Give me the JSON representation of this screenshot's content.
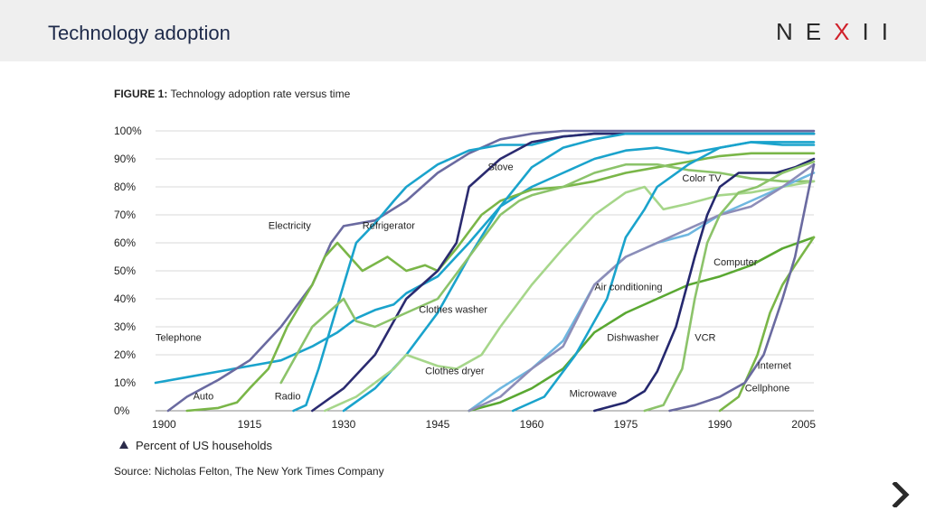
{
  "header": {
    "title": "Technology adoption",
    "brand_main": "NE",
    "brand_x": "X",
    "brand_end": "II"
  },
  "figure": {
    "label": "FIGURE 1:",
    "caption": "Technology adoption rate versus time"
  },
  "legend_note": "Percent of US households",
  "source": "Source: Nicholas Felton, The New York Times Company",
  "colors": {
    "header_bg": "#efefef",
    "accent_red": "#d0202a",
    "navy": "#1e2a4a"
  },
  "chart_data": {
    "type": "line",
    "xlim": [
      1900,
      2005
    ],
    "ylim": [
      0,
      100
    ],
    "xticks": [
      "1900",
      "1915",
      "1930",
      "1945",
      "1960",
      "1975",
      "1990",
      "2005"
    ],
    "yticks": [
      "0%",
      "10%",
      "20%",
      "30%",
      "40%",
      "50%",
      "60%",
      "70%",
      "80%",
      "90%",
      "100%"
    ],
    "grid": true,
    "series": [
      {
        "name": "Telephone",
        "color": "#1aa3cc",
        "label": "Telephone",
        "label_at": [
          1900,
          25
        ],
        "points": [
          [
            1900,
            10
          ],
          [
            1905,
            12
          ],
          [
            1910,
            14
          ],
          [
            1915,
            16
          ],
          [
            1920,
            18
          ],
          [
            1925,
            23
          ],
          [
            1929,
            28
          ],
          [
            1932,
            33
          ],
          [
            1935,
            36
          ],
          [
            1938,
            38
          ],
          [
            1940,
            42
          ],
          [
            1945,
            48
          ],
          [
            1950,
            60
          ],
          [
            1955,
            73
          ],
          [
            1960,
            80
          ],
          [
            1965,
            85
          ],
          [
            1970,
            90
          ],
          [
            1975,
            93
          ],
          [
            1980,
            94
          ],
          [
            1985,
            92
          ],
          [
            1990,
            94
          ],
          [
            1995,
            96
          ],
          [
            2000,
            95
          ],
          [
            2005,
            95
          ]
        ]
      },
      {
        "name": "Electricity",
        "color": "#6a6aa0",
        "label": "Electricity",
        "label_at": [
          1918,
          65
        ],
        "points": [
          [
            1902,
            0
          ],
          [
            1905,
            5
          ],
          [
            1910,
            11
          ],
          [
            1915,
            18
          ],
          [
            1920,
            30
          ],
          [
            1925,
            45
          ],
          [
            1928,
            60
          ],
          [
            1930,
            66
          ],
          [
            1935,
            68
          ],
          [
            1940,
            75
          ],
          [
            1945,
            85
          ],
          [
            1950,
            92
          ],
          [
            1955,
            97
          ],
          [
            1960,
            99
          ],
          [
            1965,
            100
          ],
          [
            2005,
            100
          ]
        ]
      },
      {
        "name": "Auto",
        "color": "#7ab648",
        "label": "Auto",
        "label_at": [
          1906,
          4
        ],
        "points": [
          [
            1905,
            0
          ],
          [
            1910,
            1
          ],
          [
            1913,
            3
          ],
          [
            1915,
            8
          ],
          [
            1918,
            15
          ],
          [
            1921,
            30
          ],
          [
            1925,
            45
          ],
          [
            1927,
            55
          ],
          [
            1929,
            60
          ],
          [
            1931,
            55
          ],
          [
            1933,
            50
          ],
          [
            1937,
            55
          ],
          [
            1940,
            50
          ],
          [
            1943,
            52
          ],
          [
            1945,
            50
          ],
          [
            1948,
            58
          ],
          [
            1952,
            70
          ],
          [
            1955,
            75
          ],
          [
            1960,
            79
          ],
          [
            1965,
            80
          ],
          [
            1970,
            82
          ],
          [
            1975,
            85
          ],
          [
            1980,
            87
          ],
          [
            1985,
            89
          ],
          [
            1990,
            91
          ],
          [
            1995,
            92
          ],
          [
            2000,
            92
          ],
          [
            2005,
            92
          ]
        ]
      },
      {
        "name": "Radio",
        "color": "#1aa3cc",
        "label": "Radio",
        "label_at": [
          1919,
          4
        ],
        "points": [
          [
            1922,
            0
          ],
          [
            1924,
            2
          ],
          [
            1926,
            15
          ],
          [
            1928,
            30
          ],
          [
            1930,
            45
          ],
          [
            1932,
            60
          ],
          [
            1935,
            67
          ],
          [
            1938,
            75
          ],
          [
            1940,
            80
          ],
          [
            1945,
            88
          ],
          [
            1950,
            93
          ],
          [
            1955,
            95
          ],
          [
            1960,
            95
          ],
          [
            1965,
            98
          ],
          [
            1970,
            99
          ],
          [
            2005,
            99
          ]
        ]
      },
      {
        "name": "Refrigerator",
        "color": "#2b2b70",
        "label": "Refrigerator",
        "label_at": [
          1933,
          65
        ],
        "points": [
          [
            1925,
            0
          ],
          [
            1930,
            8
          ],
          [
            1935,
            20
          ],
          [
            1940,
            40
          ],
          [
            1945,
            50
          ],
          [
            1948,
            60
          ],
          [
            1950,
            80
          ],
          [
            1955,
            90
          ],
          [
            1960,
            96
          ],
          [
            1965,
            98
          ],
          [
            1970,
            99
          ],
          [
            2005,
            99
          ]
        ]
      },
      {
        "name": "Stove",
        "color": "#1aa3cc",
        "label": "Stove",
        "label_at": [
          1953,
          86
        ],
        "points": [
          [
            1930,
            0
          ],
          [
            1935,
            8
          ],
          [
            1940,
            20
          ],
          [
            1945,
            35
          ],
          [
            1950,
            55
          ],
          [
            1955,
            73
          ],
          [
            1960,
            87
          ],
          [
            1965,
            94
          ],
          [
            1970,
            97
          ],
          [
            1975,
            99
          ],
          [
            2005,
            99
          ]
        ]
      },
      {
        "name": "Clothes washer",
        "color": "#8cc36a",
        "label": "Clothes washer",
        "label_at": [
          1942,
          35
        ],
        "points": [
          [
            1920,
            10
          ],
          [
            1925,
            30
          ],
          [
            1930,
            40
          ],
          [
            1932,
            32
          ],
          [
            1935,
            30
          ],
          [
            1940,
            35
          ],
          [
            1945,
            40
          ],
          [
            1950,
            55
          ],
          [
            1955,
            70
          ],
          [
            1958,
            75
          ],
          [
            1960,
            77
          ],
          [
            1965,
            80
          ],
          [
            1970,
            85
          ],
          [
            1975,
            88
          ],
          [
            1980,
            88
          ],
          [
            1985,
            86
          ],
          [
            1990,
            85
          ],
          [
            1995,
            83
          ],
          [
            2000,
            82
          ],
          [
            2005,
            82
          ]
        ]
      },
      {
        "name": "Clothes dryer",
        "color": "#a6d68a",
        "label": "Clothes dryer",
        "label_at": [
          1943,
          13
        ],
        "points": [
          [
            1927,
            0
          ],
          [
            1932,
            5
          ],
          [
            1935,
            10
          ],
          [
            1938,
            15
          ],
          [
            1940,
            20
          ],
          [
            1945,
            16
          ],
          [
            1948,
            15
          ],
          [
            1952,
            20
          ],
          [
            1955,
            30
          ],
          [
            1960,
            45
          ],
          [
            1965,
            58
          ],
          [
            1970,
            70
          ],
          [
            1975,
            78
          ],
          [
            1978,
            80
          ],
          [
            1981,
            72
          ],
          [
            1985,
            74
          ],
          [
            1990,
            77
          ],
          [
            1995,
            78
          ],
          [
            2000,
            80
          ],
          [
            2005,
            82
          ]
        ]
      },
      {
        "name": "Air conditioning",
        "color": "#6fb7e0",
        "label": "Air conditioning",
        "label_at": [
          1970,
          43
        ],
        "points": [
          [
            1950,
            0
          ],
          [
            1955,
            8
          ],
          [
            1960,
            15
          ],
          [
            1965,
            25
          ],
          [
            1970,
            45
          ],
          [
            1975,
            55
          ],
          [
            1980,
            60
          ],
          [
            1985,
            63
          ],
          [
            1990,
            70
          ],
          [
            1995,
            75
          ],
          [
            2000,
            80
          ],
          [
            2005,
            85
          ]
        ]
      },
      {
        "name": "Dishwasher",
        "color": "#5aa832",
        "label": "Dishwasher",
        "label_at": [
          1972,
          25
        ],
        "points": [
          [
            1950,
            0
          ],
          [
            1955,
            3
          ],
          [
            1960,
            8
          ],
          [
            1965,
            15
          ],
          [
            1970,
            28
          ],
          [
            1975,
            35
          ],
          [
            1980,
            40
          ],
          [
            1985,
            45
          ],
          [
            1990,
            48
          ],
          [
            1995,
            52
          ],
          [
            2000,
            58
          ],
          [
            2005,
            62
          ]
        ]
      },
      {
        "name": "Computer",
        "color": "#8d8db8",
        "label": "Computer",
        "label_at": [
          1989,
          52
        ],
        "points": [
          [
            1950,
            0
          ],
          [
            1955,
            5
          ],
          [
            1960,
            15
          ],
          [
            1965,
            23
          ],
          [
            1970,
            45
          ],
          [
            1975,
            55
          ],
          [
            1980,
            60
          ],
          [
            1985,
            65
          ],
          [
            1990,
            70
          ],
          [
            1995,
            73
          ],
          [
            2000,
            80
          ],
          [
            2005,
            88
          ]
        ]
      },
      {
        "name": "Color TV",
        "color": "#1aa3cc",
        "label": "Color TV",
        "label_at": [
          1984,
          82
        ],
        "points": [
          [
            1957,
            0
          ],
          [
            1962,
            5
          ],
          [
            1967,
            20
          ],
          [
            1972,
            40
          ],
          [
            1975,
            62
          ],
          [
            1978,
            72
          ],
          [
            1980,
            80
          ],
          [
            1985,
            88
          ],
          [
            1990,
            94
          ],
          [
            1995,
            96
          ],
          [
            2000,
            96
          ],
          [
            2005,
            96
          ]
        ]
      },
      {
        "name": "Microwave",
        "color": "#25286e",
        "label": "Microwave",
        "label_at": [
          1966,
          5
        ],
        "points": [
          [
            1970,
            0
          ],
          [
            1975,
            3
          ],
          [
            1978,
            7
          ],
          [
            1980,
            14
          ],
          [
            1983,
            30
          ],
          [
            1986,
            55
          ],
          [
            1988,
            70
          ],
          [
            1990,
            80
          ],
          [
            1993,
            85
          ],
          [
            1996,
            85
          ],
          [
            1999,
            85
          ],
          [
            2002,
            87
          ],
          [
            2005,
            90
          ]
        ]
      },
      {
        "name": "VCR",
        "color": "#8cc36a",
        "label": "VCR",
        "label_at": [
          1986,
          25
        ],
        "points": [
          [
            1978,
            0
          ],
          [
            1981,
            2
          ],
          [
            1984,
            15
          ],
          [
            1986,
            40
          ],
          [
            1988,
            60
          ],
          [
            1990,
            70
          ],
          [
            1993,
            78
          ],
          [
            1996,
            80
          ],
          [
            2000,
            85
          ],
          [
            2005,
            89
          ]
        ]
      },
      {
        "name": "Internet",
        "color": "#7ab648",
        "label": "Internet",
        "label_at": [
          1996,
          15
        ],
        "points": [
          [
            1990,
            0
          ],
          [
            1993,
            5
          ],
          [
            1996,
            20
          ],
          [
            1998,
            35
          ],
          [
            2000,
            45
          ],
          [
            2002,
            52
          ],
          [
            2005,
            62
          ]
        ]
      },
      {
        "name": "Cellphone",
        "color": "#6a6aa0",
        "label": "Cellphone",
        "label_at": [
          1994,
          7
        ],
        "points": [
          [
            1982,
            0
          ],
          [
            1986,
            2
          ],
          [
            1990,
            5
          ],
          [
            1994,
            10
          ],
          [
            1997,
            20
          ],
          [
            2000,
            40
          ],
          [
            2002,
            55
          ],
          [
            2005,
            88
          ]
        ]
      }
    ]
  }
}
